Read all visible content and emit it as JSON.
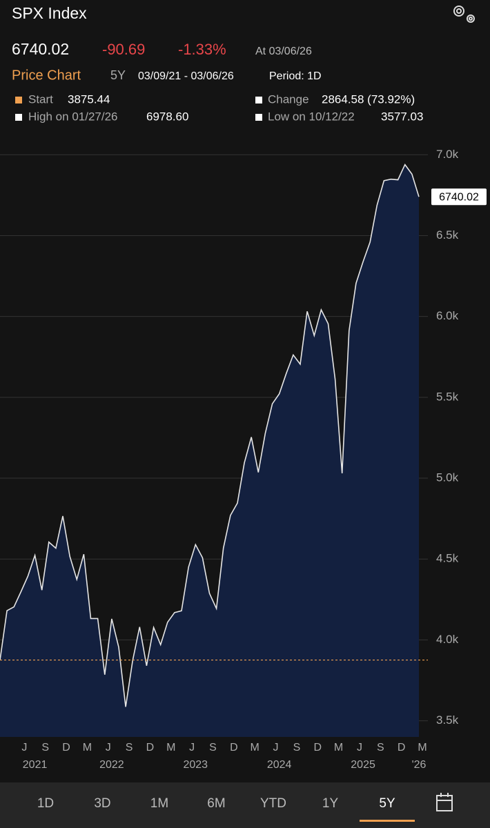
{
  "header": {
    "title": "SPX Index",
    "price": "6740.02",
    "change": "-90.69",
    "change_pct": "-1.33%",
    "as_of": "At 03/06/26"
  },
  "subheader": {
    "label": "Price Chart",
    "range": "5Y",
    "dates": "03/09/21 - 03/06/26",
    "period": "Period: 1D"
  },
  "stats": [
    {
      "label": "Start",
      "value": "3875.44"
    },
    {
      "label": "Change",
      "value": "2864.58 (73.92%)"
    },
    {
      "label": "High on 01/27/26",
      "value": "6978.60"
    },
    {
      "label": "Low on 10/12/22",
      "value": "3577.03"
    }
  ],
  "tabs": [
    "1D",
    "3D",
    "1M",
    "6M",
    "YTD",
    "1Y",
    "5Y"
  ],
  "selected_tab": 6,
  "chart_data": {
    "type": "area",
    "series": [
      {
        "name": "SPX Index",
        "color": "#e6e6e6",
        "fill": "#13203f",
        "x": [
          "2021-03",
          "2021-04",
          "2021-05",
          "2021-06",
          "2021-07",
          "2021-08",
          "2021-09",
          "2021-10",
          "2021-11",
          "2021-12",
          "2022-01",
          "2022-02",
          "2022-03",
          "2022-04",
          "2022-05",
          "2022-06",
          "2022-07",
          "2022-08",
          "2022-09",
          "2022-10",
          "2022-11",
          "2022-12",
          "2023-01",
          "2023-02",
          "2023-03",
          "2023-04",
          "2023-05",
          "2023-06",
          "2023-07",
          "2023-08",
          "2023-09",
          "2023-10",
          "2023-11",
          "2023-12",
          "2024-01",
          "2024-02",
          "2024-03",
          "2024-04",
          "2024-05",
          "2024-06",
          "2024-07",
          "2024-08",
          "2024-09",
          "2024-10",
          "2024-11",
          "2024-12",
          "2025-01",
          "2025-02",
          "2025-03",
          "2025-04",
          "2025-05",
          "2025-06",
          "2025-07",
          "2025-08",
          "2025-09",
          "2025-10",
          "2025-11",
          "2025-12",
          "2026-01",
          "2026-02",
          "2026-03"
        ],
        "values": [
          3875,
          4181,
          4204,
          4298,
          4395,
          4523,
          4308,
          4605,
          4567,
          4766,
          4516,
          4374,
          4530,
          4132,
          4132,
          3785,
          4130,
          3955,
          3586,
          3872,
          4080,
          3840,
          4077,
          3970,
          4109,
          4169,
          4180,
          4450,
          4589,
          4508,
          4288,
          4194,
          4568,
          4770,
          4846,
          5096,
          5254,
          5036,
          5278,
          5460,
          5522,
          5648,
          5762,
          5705,
          6032,
          5882,
          6041,
          5955,
          5612,
          5030,
          5912,
          6205,
          6339,
          6460,
          6688,
          6840,
          6849,
          6845,
          6939,
          6880,
          6740.02
        ]
      }
    ],
    "xlim": [
      "2021-03",
      "2026-03"
    ],
    "ylim": [
      3400,
      7125
    ],
    "yticks": [
      {
        "value": 3500,
        "label": "3.5k"
      },
      {
        "value": 4000,
        "label": "4.0k"
      },
      {
        "value": 4500,
        "label": "4.5k"
      },
      {
        "value": 5000,
        "label": "5.0k"
      },
      {
        "value": 5500,
        "label": "5.5k"
      },
      {
        "value": 6000,
        "label": "6.0k"
      },
      {
        "value": 6500,
        "label": "6.5k"
      },
      {
        "value": 7000,
        "label": "7.0k"
      }
    ],
    "xticks": [
      {
        "value": "2021-06",
        "label": "J"
      },
      {
        "value": "2021-09",
        "label": "S"
      },
      {
        "value": "2021-12",
        "label": "D"
      },
      {
        "value": "2022-03",
        "label": "M"
      },
      {
        "value": "2022-06",
        "label": "J"
      },
      {
        "value": "2022-09",
        "label": "S"
      },
      {
        "value": "2022-12",
        "label": "D"
      },
      {
        "value": "2023-03",
        "label": "M"
      },
      {
        "value": "2023-06",
        "label": "J"
      },
      {
        "value": "2023-09",
        "label": "S"
      },
      {
        "value": "2023-12",
        "label": "D"
      },
      {
        "value": "2024-03",
        "label": "M"
      },
      {
        "value": "2024-06",
        "label": "J"
      },
      {
        "value": "2024-09",
        "label": "S"
      },
      {
        "value": "2024-12",
        "label": "D"
      },
      {
        "value": "2025-03",
        "label": "M"
      },
      {
        "value": "2025-06",
        "label": "J"
      },
      {
        "value": "2025-09",
        "label": "S"
      },
      {
        "value": "2025-12",
        "label": "D"
      },
      {
        "value": "2026-03",
        "label": "M"
      }
    ],
    "year_labels": [
      {
        "value": "2021-08",
        "label": "2021"
      },
      {
        "value": "2022-07",
        "label": "2022"
      },
      {
        "value": "2023-07",
        "label": "2023"
      },
      {
        "value": "2024-07",
        "label": "2024"
      },
      {
        "value": "2025-07",
        "label": "2025"
      },
      {
        "value": "2026-03",
        "label": "'26"
      }
    ],
    "reference_line": 3875.44,
    "reference_color": "#f0a050",
    "grid": true
  }
}
